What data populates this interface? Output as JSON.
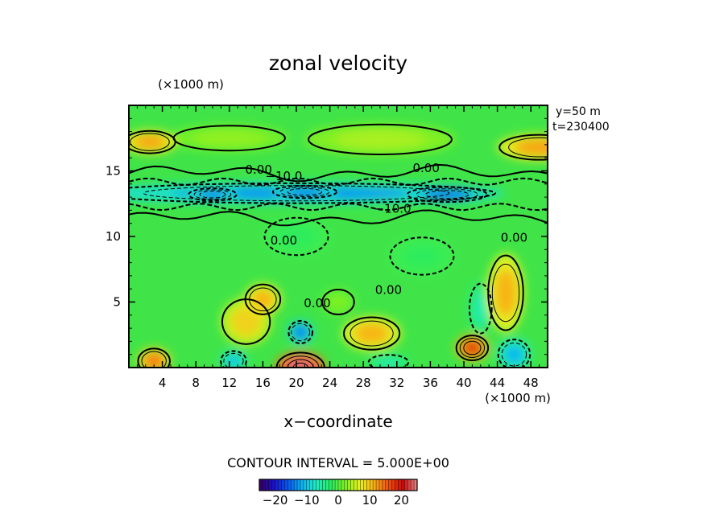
{
  "chart_data": {
    "type": "heatmap",
    "title": "zonal velocity",
    "xlabel": "x−coordinate",
    "y_unit_label": "(×1000 m)",
    "x_unit_label": "(×1000 m)",
    "info_lines": [
      "y=50  m",
      "t=230400"
    ],
    "contour_interval_text": "CONTOUR INTERVAL = 5.000E+00",
    "xlim": [
      0,
      50
    ],
    "ylim": [
      0,
      20
    ],
    "x_ticks": [
      4,
      8,
      12,
      16,
      20,
      24,
      28,
      32,
      36,
      40,
      44,
      48
    ],
    "y_ticks": [
      5,
      10,
      15
    ],
    "contour_labels": [
      {
        "text": "0.00",
        "x": 15.5,
        "y": 14.8
      },
      {
        "text": "−10.0",
        "x": 18.5,
        "y": 14.3
      },
      {
        "text": "0.00",
        "x": 35.5,
        "y": 14.9
      },
      {
        "text": "−10.0",
        "x": 31.5,
        "y": 11.8
      },
      {
        "text": "0.00",
        "x": 18.5,
        "y": 9.4
      },
      {
        "text": "0.00",
        "x": 46,
        "y": 9.6
      },
      {
        "text": "0.00",
        "x": 31,
        "y": 5.6
      },
      {
        "text": "0.00",
        "x": 22.5,
        "y": 4.6
      }
    ],
    "features": [
      {
        "x": 2.5,
        "y": 17.2,
        "rx": 3.2,
        "ry": 0.9,
        "v": 12
      },
      {
        "x": 49,
        "y": 16.8,
        "rx": 5,
        "ry": 1.0,
        "v": 12
      },
      {
        "x": 30,
        "y": 17.4,
        "rx": 9,
        "ry": 1.2,
        "v": 4
      },
      {
        "x": 12,
        "y": 17.5,
        "rx": 7,
        "ry": 1.0,
        "v": 3
      },
      {
        "x": 20,
        "y": 13.3,
        "rx": 25,
        "ry": 0.8,
        "v": -13
      },
      {
        "x": 10,
        "y": 13.2,
        "rx": 3,
        "ry": 0.5,
        "v": -15
      },
      {
        "x": 38,
        "y": 13.2,
        "rx": 5,
        "ry": 0.6,
        "v": -15
      },
      {
        "x": 21,
        "y": 13.4,
        "rx": 4,
        "ry": 0.5,
        "v": -15
      },
      {
        "x": 20,
        "y": 10,
        "rx": 4,
        "ry": 1.5,
        "v": -2
      },
      {
        "x": 45,
        "y": 5.7,
        "rx": 2.2,
        "ry": 3,
        "v": 11
      },
      {
        "x": 16,
        "y": 5.2,
        "rx": 2.2,
        "ry": 1.2,
        "v": 11
      },
      {
        "x": 14,
        "y": 3.5,
        "rx": 3,
        "ry": 1.8,
        "v": 9
      },
      {
        "x": 29,
        "y": 2.6,
        "rx": 3.5,
        "ry": 1.3,
        "v": 11
      },
      {
        "x": 41,
        "y": 1.5,
        "rx": 2,
        "ry": 1,
        "v": 18
      },
      {
        "x": 20.5,
        "y": 0,
        "rx": 3,
        "ry": 1.2,
        "v": 24
      },
      {
        "x": 20.5,
        "y": 2.7,
        "rx": 1.5,
        "ry": 0.9,
        "v": -14
      },
      {
        "x": 3,
        "y": 0.5,
        "rx": 2,
        "ry": 1,
        "v": 14
      },
      {
        "x": 46,
        "y": 1.0,
        "rx": 2,
        "ry": 1.2,
        "v": -11
      },
      {
        "x": 42,
        "y": 4.5,
        "rx": 1.4,
        "ry": 2,
        "v": -6
      },
      {
        "x": 12.5,
        "y": 0.5,
        "rx": 1.6,
        "ry": 0.8,
        "v": -10
      },
      {
        "x": 31,
        "y": 0.4,
        "rx": 2.5,
        "ry": 0.6,
        "v": -6
      },
      {
        "x": 25,
        "y": 5,
        "rx": 2,
        "ry": 1,
        "v": 2
      },
      {
        "x": 35,
        "y": 8.5,
        "rx": 4,
        "ry": 1.5,
        "v": -2
      }
    ],
    "colorbar": {
      "min": -25,
      "max": 25,
      "tick_values": [
        -20,
        -10,
        0,
        10,
        20
      ],
      "tick_labels": [
        "−20",
        "−10",
        "0",
        "10",
        "20"
      ],
      "stops": [
        "#3a005a",
        "#1a10c8",
        "#0a58f0",
        "#10b4f0",
        "#20ecc0",
        "#28ec60",
        "#80f020",
        "#e8f020",
        "#f8b018",
        "#f05010",
        "#c80808",
        "#e88888"
      ]
    }
  }
}
